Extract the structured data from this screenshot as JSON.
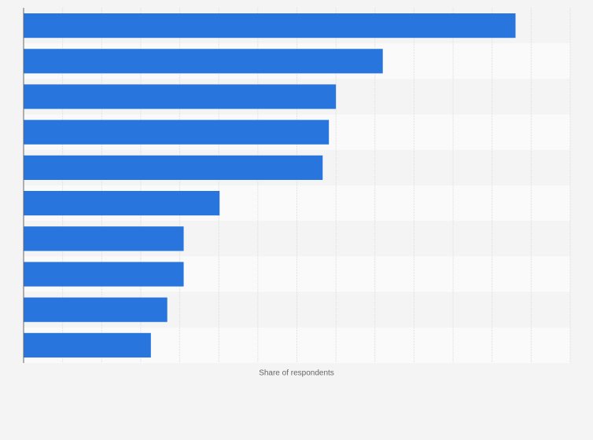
{
  "chart_data": {
    "type": "barh",
    "categories": [
      null,
      null,
      null,
      null,
      null,
      null,
      null,
      null,
      null,
      null
    ],
    "values": [
      63,
      46,
      40,
      39.1,
      38.3,
      25.1,
      20.5,
      20.5,
      18.4,
      16.3
    ],
    "color": "#2876dd",
    "x_label": "Share of respondents",
    "xlim": [
      0,
      70
    ],
    "xticks": [
      0,
      5,
      10,
      15,
      20,
      25,
      30,
      35,
      40,
      45,
      50,
      55,
      60,
      65,
      70
    ],
    "grid": true
  }
}
